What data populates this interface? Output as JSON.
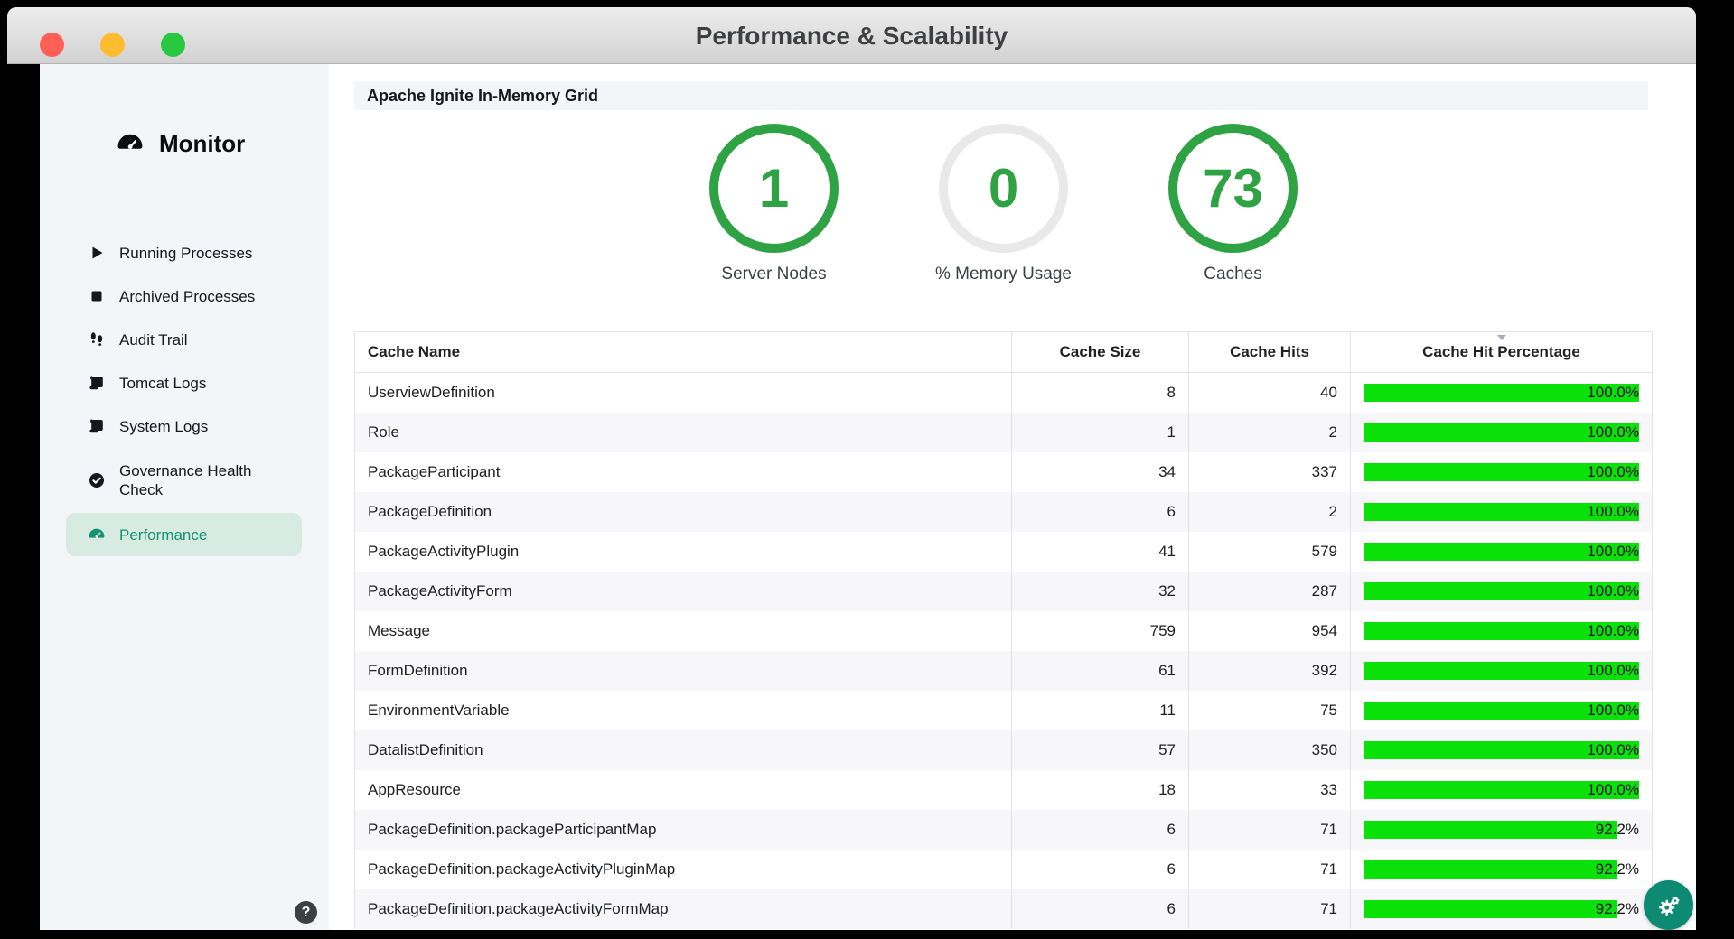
{
  "window": {
    "title": "Performance & Scalability",
    "traffic_lights": {
      "close": "#ff5f57",
      "minimize": "#febc2e",
      "zoom": "#28c840"
    }
  },
  "sidebar": {
    "app_title": "Monitor",
    "app_icon": "gauge-icon",
    "items": [
      {
        "label": "Running Processes",
        "icon": "play-icon",
        "selected": false
      },
      {
        "label": "Archived Processes",
        "icon": "stop-icon",
        "selected": false
      },
      {
        "label": "Audit Trail",
        "icon": "footprints-icon",
        "selected": false
      },
      {
        "label": "Tomcat Logs",
        "icon": "scroll-icon",
        "selected": false
      },
      {
        "label": "System Logs",
        "icon": "scroll-icon",
        "selected": false
      },
      {
        "label": "Governance Health Check",
        "icon": "check-circle-icon",
        "selected": false
      },
      {
        "label": "Performance",
        "icon": "gauge-icon",
        "selected": true
      }
    ],
    "help_label": "?"
  },
  "main": {
    "section_title": "Apache Ignite In-Memory Grid",
    "stats": [
      {
        "value": "1",
        "label": "Server Nodes",
        "ring_color": "#2fa344"
      },
      {
        "value": "0",
        "label": "% Memory Usage",
        "ring_color": "#e9e9e9"
      },
      {
        "value": "73",
        "label": "Caches",
        "ring_color": "#2fa344"
      }
    ],
    "fab_icon": "gears-icon"
  },
  "chart_data": {
    "type": "table",
    "title": "Apache Ignite In-Memory Grid caches",
    "columns": [
      "Cache Name",
      "Cache Size",
      "Cache Hits",
      "Cache Hit Percentage"
    ],
    "sorted_column": "Cache Hit Percentage",
    "sort_direction": "desc",
    "rows": [
      {
        "name": "UserviewDefinition",
        "size": 8,
        "hits": 40,
        "hit_pct": 100.0
      },
      {
        "name": "Role",
        "size": 1,
        "hits": 2,
        "hit_pct": 100.0
      },
      {
        "name": "PackageParticipant",
        "size": 34,
        "hits": 337,
        "hit_pct": 100.0
      },
      {
        "name": "PackageDefinition",
        "size": 6,
        "hits": 2,
        "hit_pct": 100.0
      },
      {
        "name": "PackageActivityPlugin",
        "size": 41,
        "hits": 579,
        "hit_pct": 100.0
      },
      {
        "name": "PackageActivityForm",
        "size": 32,
        "hits": 287,
        "hit_pct": 100.0
      },
      {
        "name": "Message",
        "size": 759,
        "hits": 954,
        "hit_pct": 100.0
      },
      {
        "name": "FormDefinition",
        "size": 61,
        "hits": 392,
        "hit_pct": 100.0
      },
      {
        "name": "EnvironmentVariable",
        "size": 11,
        "hits": 75,
        "hit_pct": 100.0
      },
      {
        "name": "DatalistDefinition",
        "size": 57,
        "hits": 350,
        "hit_pct": 100.0
      },
      {
        "name": "AppResource",
        "size": 18,
        "hits": 33,
        "hit_pct": 100.0
      },
      {
        "name": "PackageDefinition.packageParticipantMap",
        "size": 6,
        "hits": 71,
        "hit_pct": 92.2
      },
      {
        "name": "PackageDefinition.packageActivityPluginMap",
        "size": 6,
        "hits": 71,
        "hit_pct": 92.2
      },
      {
        "name": "PackageDefinition.packageActivityFormMap",
        "size": 6,
        "hits": 71,
        "hit_pct": 92.2
      }
    ],
    "bar_color": "#09e109"
  },
  "colors": {
    "sidebar_bg": "#f4f5f8",
    "selected_bg": "#d8ebe3",
    "selected_text": "#13946e",
    "ring_green": "#2fa344",
    "ring_gray": "#e9e9e9",
    "bar_green": "#09e109",
    "fab_teal": "#0d8a72"
  }
}
